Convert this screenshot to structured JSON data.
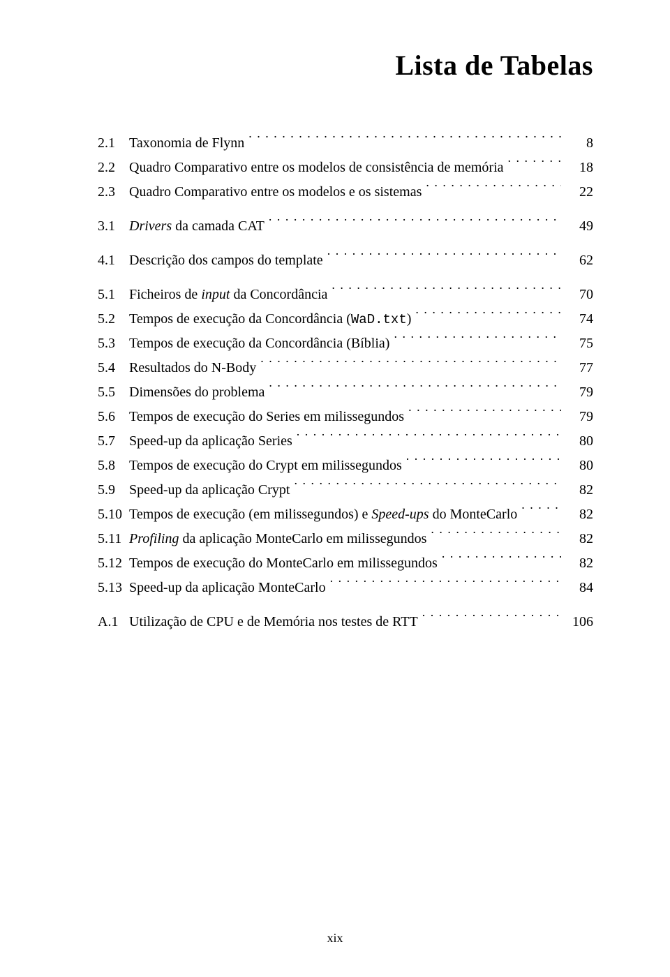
{
  "title": "Lista de Tabelas",
  "page_number_roman": "xix",
  "typography": {
    "title_fontsize_pt": 30,
    "body_fontsize_pt": 15,
    "font_family": "Palatino",
    "text_color": "#000000",
    "background_color": "#ffffff"
  },
  "groups": [
    {
      "entries": [
        {
          "num": "2.1",
          "label_plain": "Taxonomia de Flynn",
          "label_html": "Taxonomia de Flynn",
          "page": "8"
        },
        {
          "num": "2.2",
          "label_plain": "Quadro Comparativo entre os modelos de consistência de memória",
          "label_html": "Quadro Comparativo entre os modelos de consistência de memória",
          "page": "18"
        },
        {
          "num": "2.3",
          "label_plain": "Quadro Comparativo entre os modelos e os sistemas",
          "label_html": "Quadro Comparativo entre os modelos e os sistemas",
          "page": "22"
        }
      ]
    },
    {
      "entries": [
        {
          "num": "3.1",
          "label_plain": "Drivers da camada CAT",
          "label_html": "<span class=\"it\">Drivers</span> da camada CAT",
          "page": "49"
        }
      ]
    },
    {
      "entries": [
        {
          "num": "4.1",
          "label_plain": "Descrição dos campos do template",
          "label_html": "Descrição dos campos do template",
          "page": "62"
        }
      ]
    },
    {
      "entries": [
        {
          "num": "5.1",
          "label_plain": "Ficheiros de input da Concordância",
          "label_html": "Ficheiros de <span class=\"it\">input</span> da Concordância",
          "page": "70"
        },
        {
          "num": "5.2",
          "label_plain": "Tempos de execução da Concordância (WaD.txt)",
          "label_html": "Tempos de execução da Concordância (<span class=\"tt\">WaD.txt</span>)",
          "page": "74"
        },
        {
          "num": "5.3",
          "label_plain": "Tempos de execução da Concordância (Bíblia)",
          "label_html": "Tempos de execução da Concordância (Bíblia)",
          "page": "75"
        },
        {
          "num": "5.4",
          "label_plain": "Resultados do N-Body",
          "label_html": "Resultados do N-Body",
          "page": "77"
        },
        {
          "num": "5.5",
          "label_plain": "Dimensões do problema",
          "label_html": "Dimensões do problema",
          "page": "79"
        },
        {
          "num": "5.6",
          "label_plain": "Tempos de execução do Series em milissegundos",
          "label_html": "Tempos de execução do Series em milissegundos",
          "page": "79"
        },
        {
          "num": "5.7",
          "label_plain": "Speed-up da aplicação Series",
          "label_html": "Speed-up da aplicação Series",
          "page": "80"
        },
        {
          "num": "5.8",
          "label_plain": "Tempos de execução do Crypt em milissegundos",
          "label_html": "Tempos de execução do Crypt em milissegundos",
          "page": "80"
        },
        {
          "num": "5.9",
          "label_plain": "Speed-up da aplicação Crypt",
          "label_html": "Speed-up da aplicação Crypt",
          "page": "82"
        },
        {
          "num": "5.10",
          "label_plain": "Tempos de execução (em milissegundos) e Speed-ups do MonteCarlo",
          "label_html": "Tempos de execução (em milissegundos) e <span class=\"it\">Speed-ups</span> do MonteCarlo",
          "page": "82"
        },
        {
          "num": "5.11",
          "label_plain": "Profiling da aplicação MonteCarlo em milissegundos",
          "label_html": "<span class=\"it\">Profiling</span> da aplicação MonteCarlo em milissegundos",
          "page": "82"
        },
        {
          "num": "5.12",
          "label_plain": "Tempos de execução do MonteCarlo em milissegundos",
          "label_html": "Tempos de execução do MonteCarlo em milissegundos",
          "page": "82"
        },
        {
          "num": "5.13",
          "label_plain": "Speed-up da aplicação MonteCarlo",
          "label_html": "Speed-up da aplicação MonteCarlo",
          "page": "84"
        }
      ]
    },
    {
      "entries": [
        {
          "num": "A.1",
          "label_plain": "Utilização de CPU e de Memória nos testes de RTT",
          "label_html": "Utilização de CPU e de Memória nos testes de RTT",
          "page": "106"
        }
      ]
    }
  ]
}
